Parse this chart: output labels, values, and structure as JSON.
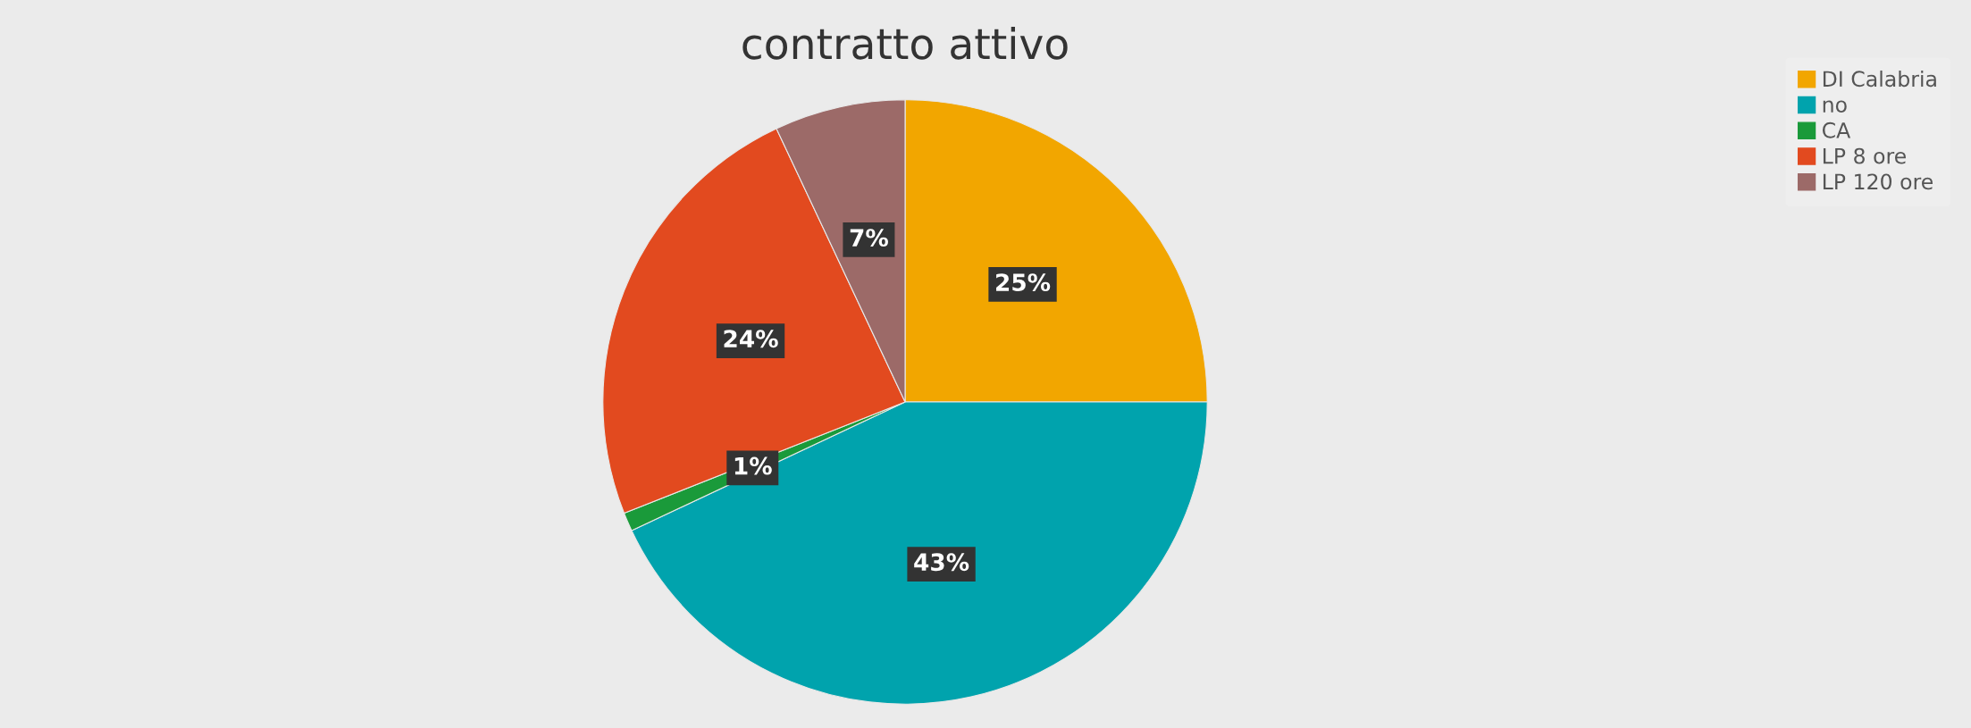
{
  "chart_data": {
    "type": "pie",
    "title": "contratto attivo",
    "categories": [
      "DI Calabria",
      "no",
      "CA",
      "LP 8 ore",
      "LP 120 ore"
    ],
    "values": [
      25,
      43,
      1,
      24,
      7
    ],
    "colors": [
      "#f2a600",
      "#00a3ad",
      "#1a9a3a",
      "#e24a1f",
      "#9c6a68"
    ],
    "value_labels": [
      "25%",
      "43%",
      "1%",
      "24%",
      "7%"
    ],
    "legend": "top right"
  }
}
